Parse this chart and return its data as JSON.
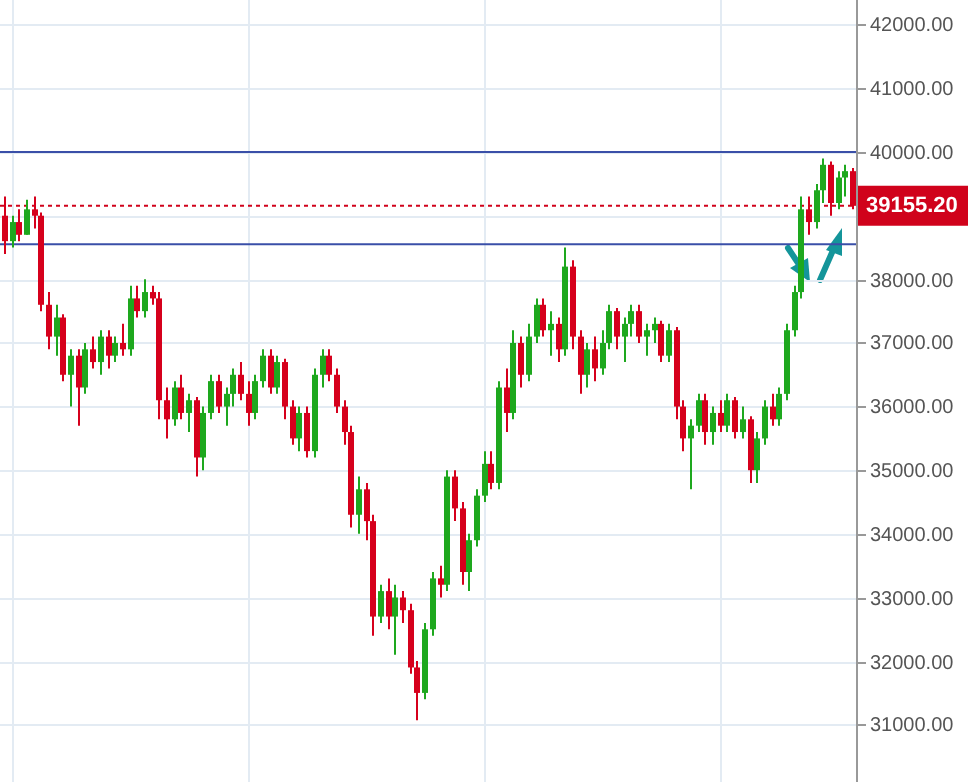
{
  "chart_data": {
    "type": "candlestick",
    "categories": [
      null,
      null,
      null,
      null,
      null,
      null,
      null,
      null,
      null,
      null,
      null,
      null,
      null,
      null,
      null,
      null,
      null,
      null,
      null,
      null,
      null,
      null,
      null,
      null,
      null,
      null,
      null,
      null,
      null,
      null,
      null,
      null,
      null,
      null,
      null,
      null,
      null,
      null,
      null,
      null,
      null,
      null,
      null,
      null,
      null,
      null,
      null,
      null,
      null,
      null,
      null,
      null,
      null,
      null,
      null,
      null,
      null,
      null,
      null,
      null,
      null,
      null,
      null,
      null,
      null,
      null,
      null,
      null,
      null,
      null,
      null,
      null,
      null,
      null,
      null,
      null,
      null,
      null,
      null,
      null,
      null,
      null,
      null,
      null,
      null,
      null,
      null,
      null,
      null,
      null,
      null,
      null,
      null,
      null,
      null,
      null,
      null,
      null,
      null,
      null,
      null,
      null,
      null,
      null,
      null,
      null,
      null,
      null,
      null,
      null,
      null,
      null,
      null,
      null,
      null,
      null
    ],
    "ohlc": [
      [
        39000,
        39300,
        38400,
        38600
      ],
      [
        38600,
        39000,
        38500,
        38900
      ],
      [
        38900,
        39100,
        38600,
        38700
      ],
      [
        38700,
        39250,
        38700,
        39100
      ],
      [
        39100,
        39300,
        38800,
        39000
      ],
      [
        39000,
        39050,
        37500,
        37600
      ],
      [
        37600,
        37800,
        36900,
        37100
      ],
      [
        37100,
        37600,
        36800,
        37400
      ],
      [
        37400,
        37450,
        36400,
        36500
      ],
      [
        36500,
        36900,
        36000,
        36800
      ],
      [
        36800,
        36900,
        35700,
        36300
      ],
      [
        36300,
        37000,
        36200,
        36900
      ],
      [
        36900,
        37100,
        36600,
        36700
      ],
      [
        36700,
        37200,
        36500,
        37100
      ],
      [
        37100,
        37200,
        36600,
        36800
      ],
      [
        36800,
        37100,
        36700,
        37000
      ],
      [
        37000,
        37300,
        36800,
        36900
      ],
      [
        36900,
        37900,
        36800,
        37700
      ],
      [
        37700,
        37900,
        37400,
        37500
      ],
      [
        37500,
        38000,
        37400,
        37800
      ],
      [
        37800,
        37900,
        37600,
        37700
      ],
      [
        37700,
        37800,
        35800,
        36100
      ],
      [
        36100,
        36300,
        35500,
        35800
      ],
      [
        35800,
        36400,
        35700,
        36300
      ],
      [
        36300,
        36500,
        35800,
        35900
      ],
      [
        35900,
        36200,
        35600,
        36100
      ],
      [
        36100,
        36150,
        34900,
        35200
      ],
      [
        35200,
        36000,
        35000,
        35900
      ],
      [
        35900,
        36500,
        35800,
        36400
      ],
      [
        36400,
        36500,
        35900,
        36000
      ],
      [
        36000,
        36300,
        35700,
        36200
      ],
      [
        36200,
        36600,
        36000,
        36500
      ],
      [
        36500,
        36700,
        36100,
        36200
      ],
      [
        36200,
        36400,
        35700,
        35900
      ],
      [
        35900,
        36500,
        35800,
        36400
      ],
      [
        36400,
        36900,
        36300,
        36800
      ],
      [
        36800,
        36900,
        36200,
        36300
      ],
      [
        36300,
        36800,
        36200,
        36700
      ],
      [
        36700,
        36750,
        35800,
        36000
      ],
      [
        36000,
        36100,
        35400,
        35500
      ],
      [
        35500,
        36000,
        35300,
        35900
      ],
      [
        35900,
        36000,
        35200,
        35300
      ],
      [
        35300,
        36600,
        35200,
        36500
      ],
      [
        36500,
        36900,
        36300,
        36800
      ],
      [
        36800,
        36900,
        36400,
        36500
      ],
      [
        36500,
        36600,
        35900,
        36000
      ],
      [
        36000,
        36100,
        35400,
        35600
      ],
      [
        35600,
        35700,
        34100,
        34300
      ],
      [
        34300,
        34900,
        34000,
        34700
      ],
      [
        34700,
        34800,
        33900,
        34200
      ],
      [
        34200,
        34300,
        32400,
        32700
      ],
      [
        32700,
        33200,
        32600,
        33100
      ],
      [
        33100,
        33300,
        32500,
        32700
      ],
      [
        32700,
        33200,
        32100,
        33000
      ],
      [
        33000,
        33100,
        32600,
        32800
      ],
      [
        32800,
        32900,
        31800,
        31900
      ],
      [
        31900,
        32000,
        31070,
        31500
      ],
      [
        31500,
        32600,
        31400,
        32500
      ],
      [
        32500,
        33400,
        32400,
        33300
      ],
      [
        33300,
        33500,
        33000,
        33200
      ],
      [
        33200,
        35000,
        33100,
        34900
      ],
      [
        34900,
        35000,
        34200,
        34400
      ],
      [
        34400,
        34500,
        33200,
        33400
      ],
      [
        33400,
        34000,
        33100,
        33900
      ],
      [
        33900,
        34700,
        33800,
        34600
      ],
      [
        34600,
        35300,
        34500,
        35100
      ],
      [
        35100,
        35300,
        34700,
        34800
      ],
      [
        34800,
        36400,
        34700,
        36300
      ],
      [
        36300,
        36600,
        35600,
        35900
      ],
      [
        35900,
        37200,
        35800,
        37000
      ],
      [
        37000,
        37100,
        36300,
        36500
      ],
      [
        36500,
        37300,
        36400,
        37100
      ],
      [
        37100,
        37700,
        37000,
        37600
      ],
      [
        37600,
        37700,
        37100,
        37200
      ],
      [
        37200,
        37500,
        36800,
        37300
      ],
      [
        37300,
        37400,
        36700,
        36900
      ],
      [
        36900,
        38500,
        36800,
        38200
      ],
      [
        38200,
        38300,
        36900,
        37100
      ],
      [
        37100,
        37200,
        36200,
        36500
      ],
      [
        36500,
        37000,
        36300,
        36900
      ],
      [
        36900,
        37100,
        36400,
        36600
      ],
      [
        36600,
        37200,
        36500,
        37000
      ],
      [
        37000,
        37600,
        36900,
        37500
      ],
      [
        37500,
        37550,
        36900,
        37100
      ],
      [
        37100,
        37400,
        36700,
        37300
      ],
      [
        37300,
        37600,
        37100,
        37500
      ],
      [
        37500,
        37600,
        37000,
        37100
      ],
      [
        37100,
        37300,
        36800,
        37200
      ],
      [
        37200,
        37400,
        37000,
        37300
      ],
      [
        37300,
        37350,
        36700,
        36800
      ],
      [
        36800,
        37300,
        36700,
        37200
      ],
      [
        37200,
        37250,
        35800,
        36000
      ],
      [
        36000,
        36100,
        35300,
        35500
      ],
      [
        35500,
        35800,
        34700,
        35700
      ],
      [
        35700,
        36200,
        35600,
        36100
      ],
      [
        36100,
        36200,
        35400,
        35600
      ],
      [
        35600,
        36000,
        35400,
        35900
      ],
      [
        35900,
        36100,
        35600,
        35700
      ],
      [
        35700,
        36200,
        35600,
        36100
      ],
      [
        36100,
        36150,
        35500,
        35600
      ],
      [
        35600,
        36000,
        35500,
        35800
      ],
      [
        35800,
        35850,
        34800,
        35000
      ],
      [
        35000,
        35600,
        34800,
        35500
      ],
      [
        35500,
        36100,
        35400,
        36000
      ],
      [
        36000,
        36200,
        35700,
        35800
      ],
      [
        35800,
        36300,
        35700,
        36200
      ],
      [
        36200,
        37300,
        36100,
        37200
      ],
      [
        37200,
        37900,
        37100,
        37800
      ],
      [
        37800,
        39300,
        37700,
        39100
      ],
      [
        39100,
        39300,
        38700,
        38900
      ],
      [
        38900,
        39500,
        38800,
        39400
      ],
      [
        39400,
        39900,
        39200,
        39800
      ],
      [
        39800,
        39850,
        39000,
        39200
      ],
      [
        39200,
        39700,
        39100,
        39600
      ],
      [
        39600,
        39800,
        39300,
        39700
      ],
      [
        39700,
        39750,
        39100,
        39155.2
      ]
    ],
    "ylim": [
      30100,
      42390
    ],
    "yticks": [
      {
        "value": 31000,
        "label": "31000.00"
      },
      {
        "value": 32000,
        "label": "32000.00"
      },
      {
        "value": 33000,
        "label": "33000.00"
      },
      {
        "value": 34000,
        "label": "34000.00"
      },
      {
        "value": 35000,
        "label": "35000.00"
      },
      {
        "value": 36000,
        "label": "36000.00"
      },
      {
        "value": 37000,
        "label": "37000.00"
      },
      {
        "value": 38000,
        "label": "38000.00"
      },
      {
        "value": 39000,
        "label": null
      },
      {
        "value": 40000,
        "label": "40000.00"
      },
      {
        "value": 41000,
        "label": "41000.00"
      },
      {
        "value": 42000,
        "label": "42000.00"
      }
    ],
    "tick_labels": "y",
    "grid": true,
    "legend": false,
    "ref_lines": [
      {
        "axis": "y",
        "value": 39155.2,
        "label": "39155.20",
        "color": "#d0021b",
        "line_style": "dotted"
      },
      {
        "axis": "y",
        "value": 40000,
        "color": "#3a4fa8",
        "line_style": "solid"
      },
      {
        "axis": "y",
        "value": 38550,
        "color": "#3a4fa8",
        "line_style": "solid"
      }
    ]
  }
}
